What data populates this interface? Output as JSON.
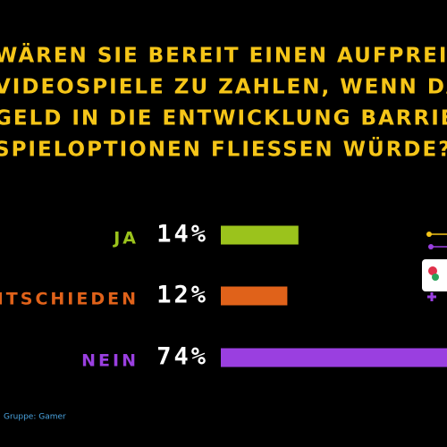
{
  "chart_data": {
    "type": "bar",
    "orientation": "horizontal",
    "title": [
      "WÄREN SIE BEREIT EINEN AUFPREI",
      "VIDEOSPIELE ZU ZAHLEN, WENN DA",
      "GELD IN DIE ENTWICKLUNG BARRIE",
      "SPIELOPTIONEN FLIESSEN WÜRDE?"
    ],
    "categories": [
      "JA",
      "UNENTSCHIEDEN",
      "NEIN"
    ],
    "values": [
      14,
      12,
      74
    ],
    "value_labels": [
      "14%",
      "12%",
      "74%"
    ],
    "colors": [
      "#9bc31c",
      "#e0621a",
      "#9a3fe0"
    ],
    "note": "Gruppe: Gamer"
  }
}
